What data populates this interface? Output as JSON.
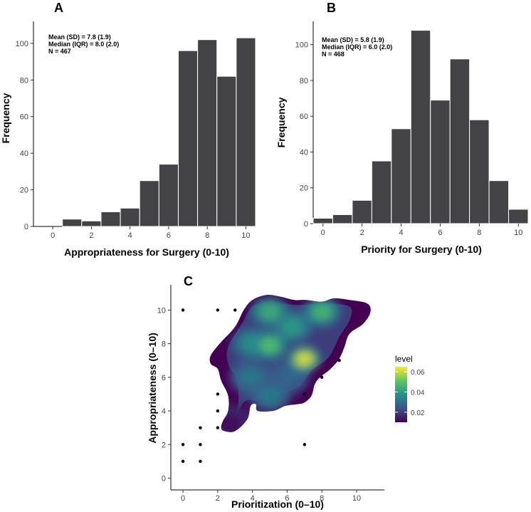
{
  "chart_data": [
    {
      "type": "bar",
      "panel": "A",
      "xlabel": "Appropriateness for Surgery (0-10)",
      "ylabel": "Frequency",
      "xlim": [
        -1.0,
        10.5
      ],
      "ylim": [
        0,
        112
      ],
      "xticks": [
        0,
        2,
        4,
        6,
        8,
        10
      ],
      "yticks": [
        0,
        20,
        40,
        60,
        80,
        100
      ],
      "bins": [
        0,
        1,
        2,
        3,
        4,
        5,
        6,
        7,
        8,
        9,
        10
      ],
      "values": [
        0,
        4,
        3,
        8,
        10,
        25,
        34,
        96,
        102,
        82,
        103
      ],
      "bar_color": "#434345",
      "stats": [
        "Mean (SD) = 7.8 (1.9)",
        "Median (IQR) = 8.0 (2.0)",
        "N = 467"
      ]
    },
    {
      "type": "bar",
      "panel": "B",
      "xlabel": "Priority for Surgery (0-10)",
      "ylabel": "Frequency",
      "xlim": [
        -0.5,
        10.5
      ],
      "ylim": [
        0,
        113
      ],
      "xticks": [
        0,
        2,
        4,
        6,
        8,
        10
      ],
      "yticks": [
        0,
        20,
        40,
        60,
        80,
        100
      ],
      "bins": [
        0,
        1,
        2,
        3,
        4,
        5,
        6,
        7,
        8,
        9,
        10
      ],
      "values": [
        3,
        5,
        13,
        35,
        53,
        108,
        69,
        92,
        58,
        24,
        8
      ],
      "bar_color": "#434345",
      "stats": [
        "Mean (SD) = 5.8 (1.9)",
        "Median (IQR) = 6.0 (2.0)",
        "N = 468"
      ]
    },
    {
      "type": "scatter",
      "subtype": "density-contour",
      "panel": "C",
      "xlabel": "Prioritization (0–10)",
      "ylabel": "Appropriateness (0–10)",
      "xlim": [
        -0.7,
        11.6
      ],
      "ylim": [
        -0.7,
        11.5
      ],
      "xticks": [
        0,
        2,
        4,
        6,
        8,
        10
      ],
      "yticks": [
        0,
        2,
        4,
        6,
        8,
        10
      ],
      "points": [
        [
          0,
          10
        ],
        [
          2,
          10
        ],
        [
          3,
          10
        ],
        [
          0,
          2
        ],
        [
          0,
          1
        ],
        [
          1,
          3
        ],
        [
          1,
          2
        ],
        [
          1,
          1
        ],
        [
          2,
          5
        ],
        [
          2,
          4
        ],
        [
          2,
          3
        ],
        [
          7,
          5
        ],
        [
          7,
          2
        ],
        [
          8,
          6
        ],
        [
          9,
          7
        ]
      ],
      "peaks": [
        {
          "x": 7.0,
          "y": 7.1,
          "level": 0.062
        },
        {
          "x": 5.0,
          "y": 7.9,
          "level": 0.048
        },
        {
          "x": 8.0,
          "y": 9.9,
          "level": 0.046
        },
        {
          "x": 5.0,
          "y": 9.9,
          "level": 0.044
        },
        {
          "x": 6.3,
          "y": 9.0,
          "level": 0.04
        },
        {
          "x": 4.0,
          "y": 8.0,
          "level": 0.038
        },
        {
          "x": 3.9,
          "y": 6.0,
          "level": 0.032
        },
        {
          "x": 5.0,
          "y": 4.9,
          "level": 0.032
        },
        {
          "x": 6.0,
          "y": 6.0,
          "level": 0.028
        },
        {
          "x": 2.7,
          "y": 3.2,
          "level": 0.012
        }
      ],
      "legend": {
        "title": "level",
        "ticks": [
          0.02,
          0.04,
          0.06
        ],
        "tick_labels": [
          "0.02",
          "0.04",
          "0.06"
        ],
        "range": [
          0.01,
          0.065
        ],
        "colors": [
          "#440154",
          "#3b528b",
          "#21918c",
          "#5ec962",
          "#fde725"
        ]
      }
    }
  ]
}
